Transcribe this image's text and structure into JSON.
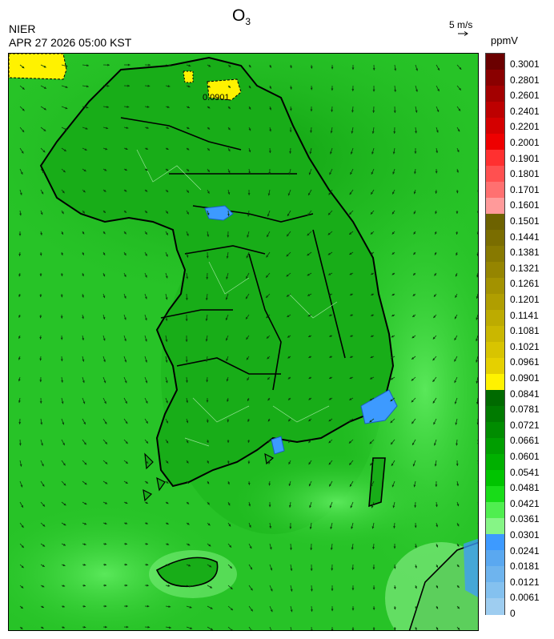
{
  "header": {
    "title_main": "O",
    "title_sub": "3",
    "agency": "NIER",
    "datetime": "APR 27 2026 05:00 KST",
    "wind_ref_label": "5 m/s",
    "unit": "ppmV"
  },
  "map": {
    "hotspot_label": "0.0901",
    "background_color": "#27c327"
  },
  "colorbar": {
    "labels": [
      "0.3001",
      "0.2801",
      "0.2601",
      "0.2401",
      "0.2201",
      "0.2001",
      "0.1901",
      "0.1801",
      "0.1701",
      "0.1601",
      "0.1501",
      "0.1441",
      "0.1381",
      "0.1321",
      "0.1261",
      "0.1201",
      "0.1141",
      "0.1081",
      "0.1021",
      "0.0961",
      "0.0901",
      "0.0841",
      "0.0781",
      "0.0721",
      "0.0661",
      "0.0601",
      "0.0541",
      "0.0481",
      "0.0421",
      "0.0361",
      "0.0301",
      "0.0241",
      "0.0181",
      "0.0121",
      "0.0061",
      "0"
    ],
    "colors": [
      "#6b0000",
      "#8a0000",
      "#a30000",
      "#bd0000",
      "#d40000",
      "#ee0000",
      "#ff3030",
      "#ff5050",
      "#ff7070",
      "#ff9a9a",
      "#6d6200",
      "#7a6d00",
      "#877900",
      "#958500",
      "#a39200",
      "#b09e00",
      "#bdab00",
      "#cab700",
      "#d8c400",
      "#e5d000",
      "#fff200",
      "#006a00",
      "#007a00",
      "#008c00",
      "#009e00",
      "#00b000",
      "#00c400",
      "#18dc18",
      "#50ee50",
      "#86f586",
      "#3d9aff",
      "#5aa8f0",
      "#6eb4ee",
      "#84c1ef",
      "#9ecdf0"
    ]
  }
}
